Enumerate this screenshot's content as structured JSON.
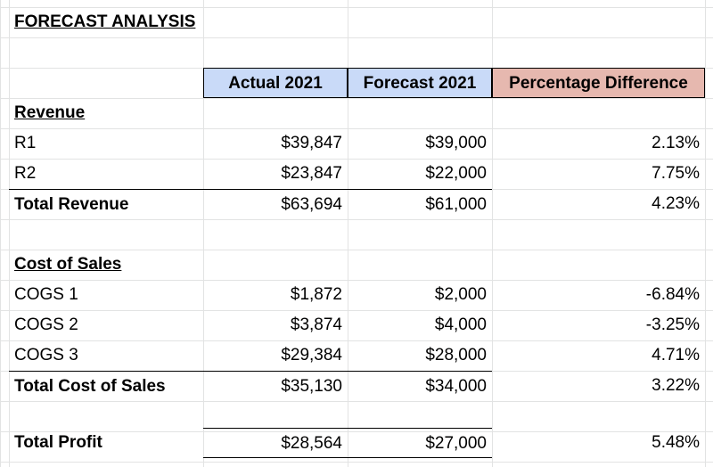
{
  "sheet": {
    "title": "FORECAST ANALYSIS",
    "headers": {
      "actual": "Actual 2021",
      "forecast": "Forecast 2021",
      "pct_diff": "Percentage Difference"
    },
    "colors": {
      "actual_header_bg": "#c9daf8",
      "forecast_header_bg": "#c9daf8",
      "pct_header_bg": "#e6b8af"
    },
    "revenue": {
      "section_label": "Revenue",
      "rows": [
        {
          "label": "R1",
          "actual": "$39,847",
          "forecast": "$39,000",
          "pct": "2.13%"
        },
        {
          "label": "R2",
          "actual": "$23,847",
          "forecast": "$22,000",
          "pct": "7.75%"
        }
      ],
      "total": {
        "label": "Total Revenue",
        "actual": "$63,694",
        "forecast": "$61,000",
        "pct": "4.23%"
      }
    },
    "cost_of_sales": {
      "section_label": "Cost of Sales",
      "rows": [
        {
          "label": "COGS 1",
          "actual": "$1,872",
          "forecast": "$2,000",
          "pct": "-6.84%"
        },
        {
          "label": "COGS 2",
          "actual": "$3,874",
          "forecast": "$4,000",
          "pct": "-3.25%"
        },
        {
          "label": "COGS 3",
          "actual": "$29,384",
          "forecast": "$28,000",
          "pct": "4.71%"
        }
      ],
      "total": {
        "label": "Total Cost of Sales",
        "actual": "$35,130",
        "forecast": "$34,000",
        "pct": "3.22%"
      }
    },
    "profit": {
      "label": "Total Profit",
      "actual": "$28,564",
      "forecast": "$27,000",
      "pct": "5.48%"
    }
  }
}
